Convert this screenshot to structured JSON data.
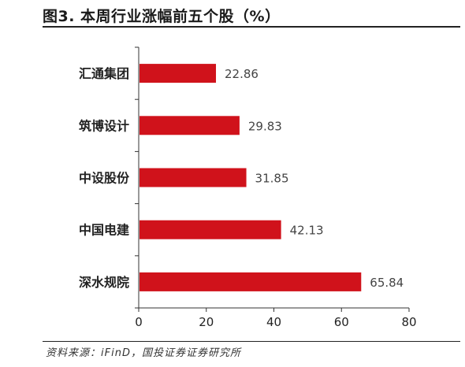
{
  "title": "图3. 本周行业涨幅前五个股（%）",
  "source": "资料来源：iFinD，国投证券证券研究所",
  "colors": {
    "bar": "#D0121B",
    "axis": "#333333",
    "text": "#222222"
  },
  "chart_data": {
    "type": "bar",
    "orientation": "horizontal",
    "categories": [
      "汇通集团",
      "筑博设计",
      "中设股份",
      "中国电建",
      "深水规院"
    ],
    "values": [
      22.86,
      29.83,
      31.85,
      42.13,
      65.84
    ],
    "xticks": [
      0,
      20,
      40,
      60,
      80
    ],
    "xlim": [
      0,
      80
    ],
    "unit": "%",
    "grid": false,
    "legend": "none"
  }
}
